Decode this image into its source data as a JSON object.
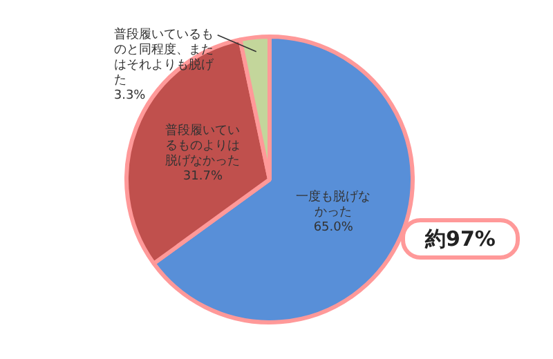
{
  "chart_data": {
    "type": "pie",
    "categories": [
      "一度も脱げなかった",
      "普段履いているものよりは脱げなかった",
      "普段履いているものと同程度、またはそれよりも脱げた"
    ],
    "values": [
      65.0,
      31.7,
      3.3
    ],
    "colors": [
      "#588fd8",
      "#c0504d",
      "#c3d69b"
    ],
    "value_labels": [
      "65.0%",
      "31.7%",
      "3.3%"
    ],
    "annotations": [
      "約97%"
    ],
    "legend": false
  }
}
